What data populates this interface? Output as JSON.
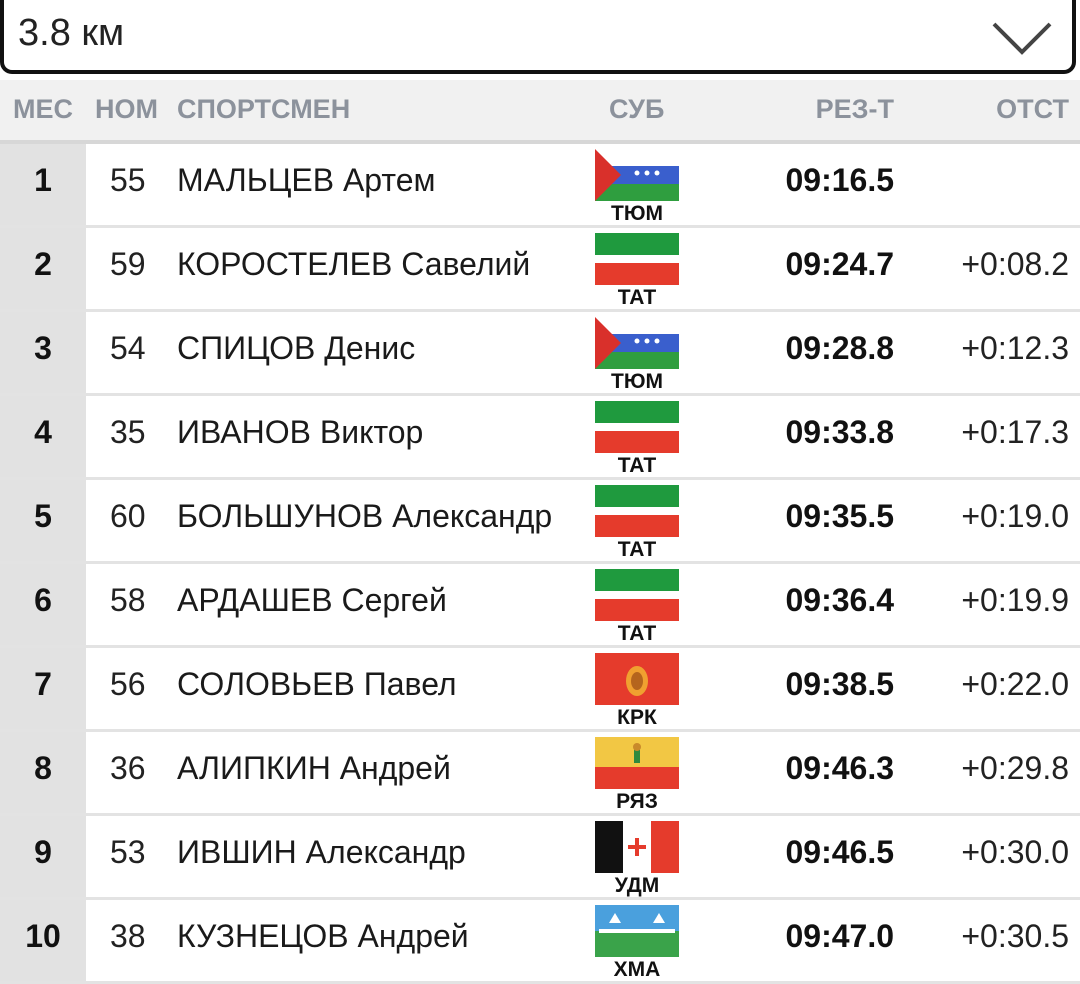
{
  "distance_selector": {
    "value": "3.8 км",
    "icon": "chevron-down-icon"
  },
  "columns": {
    "place": "МЕС",
    "bib": "НОМ",
    "athlete": "СПОРТСМЕН",
    "region": "СУБ",
    "result": "РЕЗ-Т",
    "gap": "ОТСТ"
  },
  "results": [
    {
      "place": "1",
      "bib": "55",
      "name": "МАЛЬЦЕВ Артем",
      "region": "ТЮМ",
      "flag": "tyumen-flag",
      "result": "09:16.5",
      "gap": ""
    },
    {
      "place": "2",
      "bib": "59",
      "name": "КОРОСТЕЛЕВ Савелий",
      "region": "ТАТ",
      "flag": "tatarstan-flag",
      "result": "09:24.7",
      "gap": "+0:08.2"
    },
    {
      "place": "3",
      "bib": "54",
      "name": "СПИЦОВ Денис",
      "region": "ТЮМ",
      "flag": "tyumen-flag",
      "result": "09:28.8",
      "gap": "+0:12.3"
    },
    {
      "place": "4",
      "bib": "35",
      "name": "ИВАНОВ Виктор",
      "region": "ТАТ",
      "flag": "tatarstan-flag",
      "result": "09:33.8",
      "gap": "+0:17.3"
    },
    {
      "place": "5",
      "bib": "60",
      "name": "БОЛЬШУНОВ Александр",
      "region": "ТАТ",
      "flag": "tatarstan-flag",
      "result": "09:35.5",
      "gap": "+0:19.0"
    },
    {
      "place": "6",
      "bib": "58",
      "name": "АРДАШЕВ Сергей",
      "region": "ТАТ",
      "flag": "tatarstan-flag",
      "result": "09:36.4",
      "gap": "+0:19.9"
    },
    {
      "place": "7",
      "bib": "56",
      "name": "СОЛОВЬЕВ Павел",
      "region": "КРК",
      "flag": "krasnoyarsk-flag",
      "result": "09:38.5",
      "gap": "+0:22.0"
    },
    {
      "place": "8",
      "bib": "36",
      "name": "АЛИПКИН Андрей",
      "region": "РЯЗ",
      "flag": "ryazan-flag",
      "result": "09:46.3",
      "gap": "+0:29.8"
    },
    {
      "place": "9",
      "bib": "53",
      "name": "ИВШИН Александр",
      "region": "УДМ",
      "flag": "udmurtia-flag",
      "result": "09:46.5",
      "gap": "+0:30.0"
    },
    {
      "place": "10",
      "bib": "38",
      "name": "КУЗНЕЦОВ Андрей",
      "region": "ХМА",
      "flag": "khmao-flag",
      "result": "09:47.0",
      "gap": "+0:30.5"
    }
  ],
  "colors": {
    "header_bg": "#f1f1f1",
    "header_text": "#8c929c",
    "rank_cell_bg": "#e2e2e2",
    "row_divider": "#e3e3e3"
  }
}
